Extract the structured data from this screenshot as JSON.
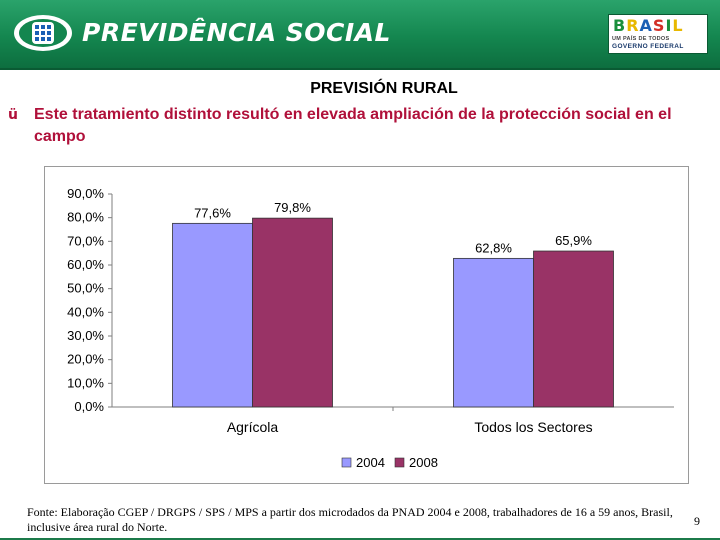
{
  "header": {
    "brand_title": "PREVIDÊNCIA SOCIAL",
    "gov_logo": {
      "word_letters": [
        "B",
        "R",
        "A",
        "S",
        "I",
        "L"
      ],
      "tagline": "UM PAÍS DE TODOS",
      "subtitle": "GOVERNO FEDERAL"
    }
  },
  "slide": {
    "title": "PREVISIÓN RURAL",
    "bullet_mark": "ü",
    "bullet_text": "Este tratamiento distinto resultó en elevada ampliación de la protección social en el campo"
  },
  "chart_data": {
    "type": "bar",
    "categories": [
      "Agrícola",
      "Todos los Sectores"
    ],
    "series": [
      {
        "name": "2004",
        "values": [
          77.6,
          62.8
        ],
        "labels": [
          "77,6%",
          "62,8%"
        ],
        "color": "#9999ff"
      },
      {
        "name": "2008",
        "values": [
          79.8,
          65.9
        ],
        "labels": [
          "79,8%",
          "65,9%"
        ],
        "color": "#993366"
      }
    ],
    "yticks": [
      "90,0%",
      "80,0%",
      "70,0%",
      "60,0%",
      "50,0%",
      "40,0%",
      "30,0%",
      "20,0%",
      "10,0%",
      "0,0%"
    ],
    "ylim": [
      0,
      90
    ],
    "legend_position": "bottom",
    "grid": false
  },
  "footer": {
    "source": "Fonte: Elaboração CGEP / DRGPS / SPS / MPS a partir dos microdados da PNAD 2004 e 2008, trabalhadores de 16 a 59 anos, Brasil, inclusive área rural do Norte.",
    "page_number": "9"
  },
  "colors": {
    "header_green": "#14864f",
    "bullet_red": "#b0103a",
    "series_2004": "#9999ff",
    "series_2008": "#993366"
  }
}
